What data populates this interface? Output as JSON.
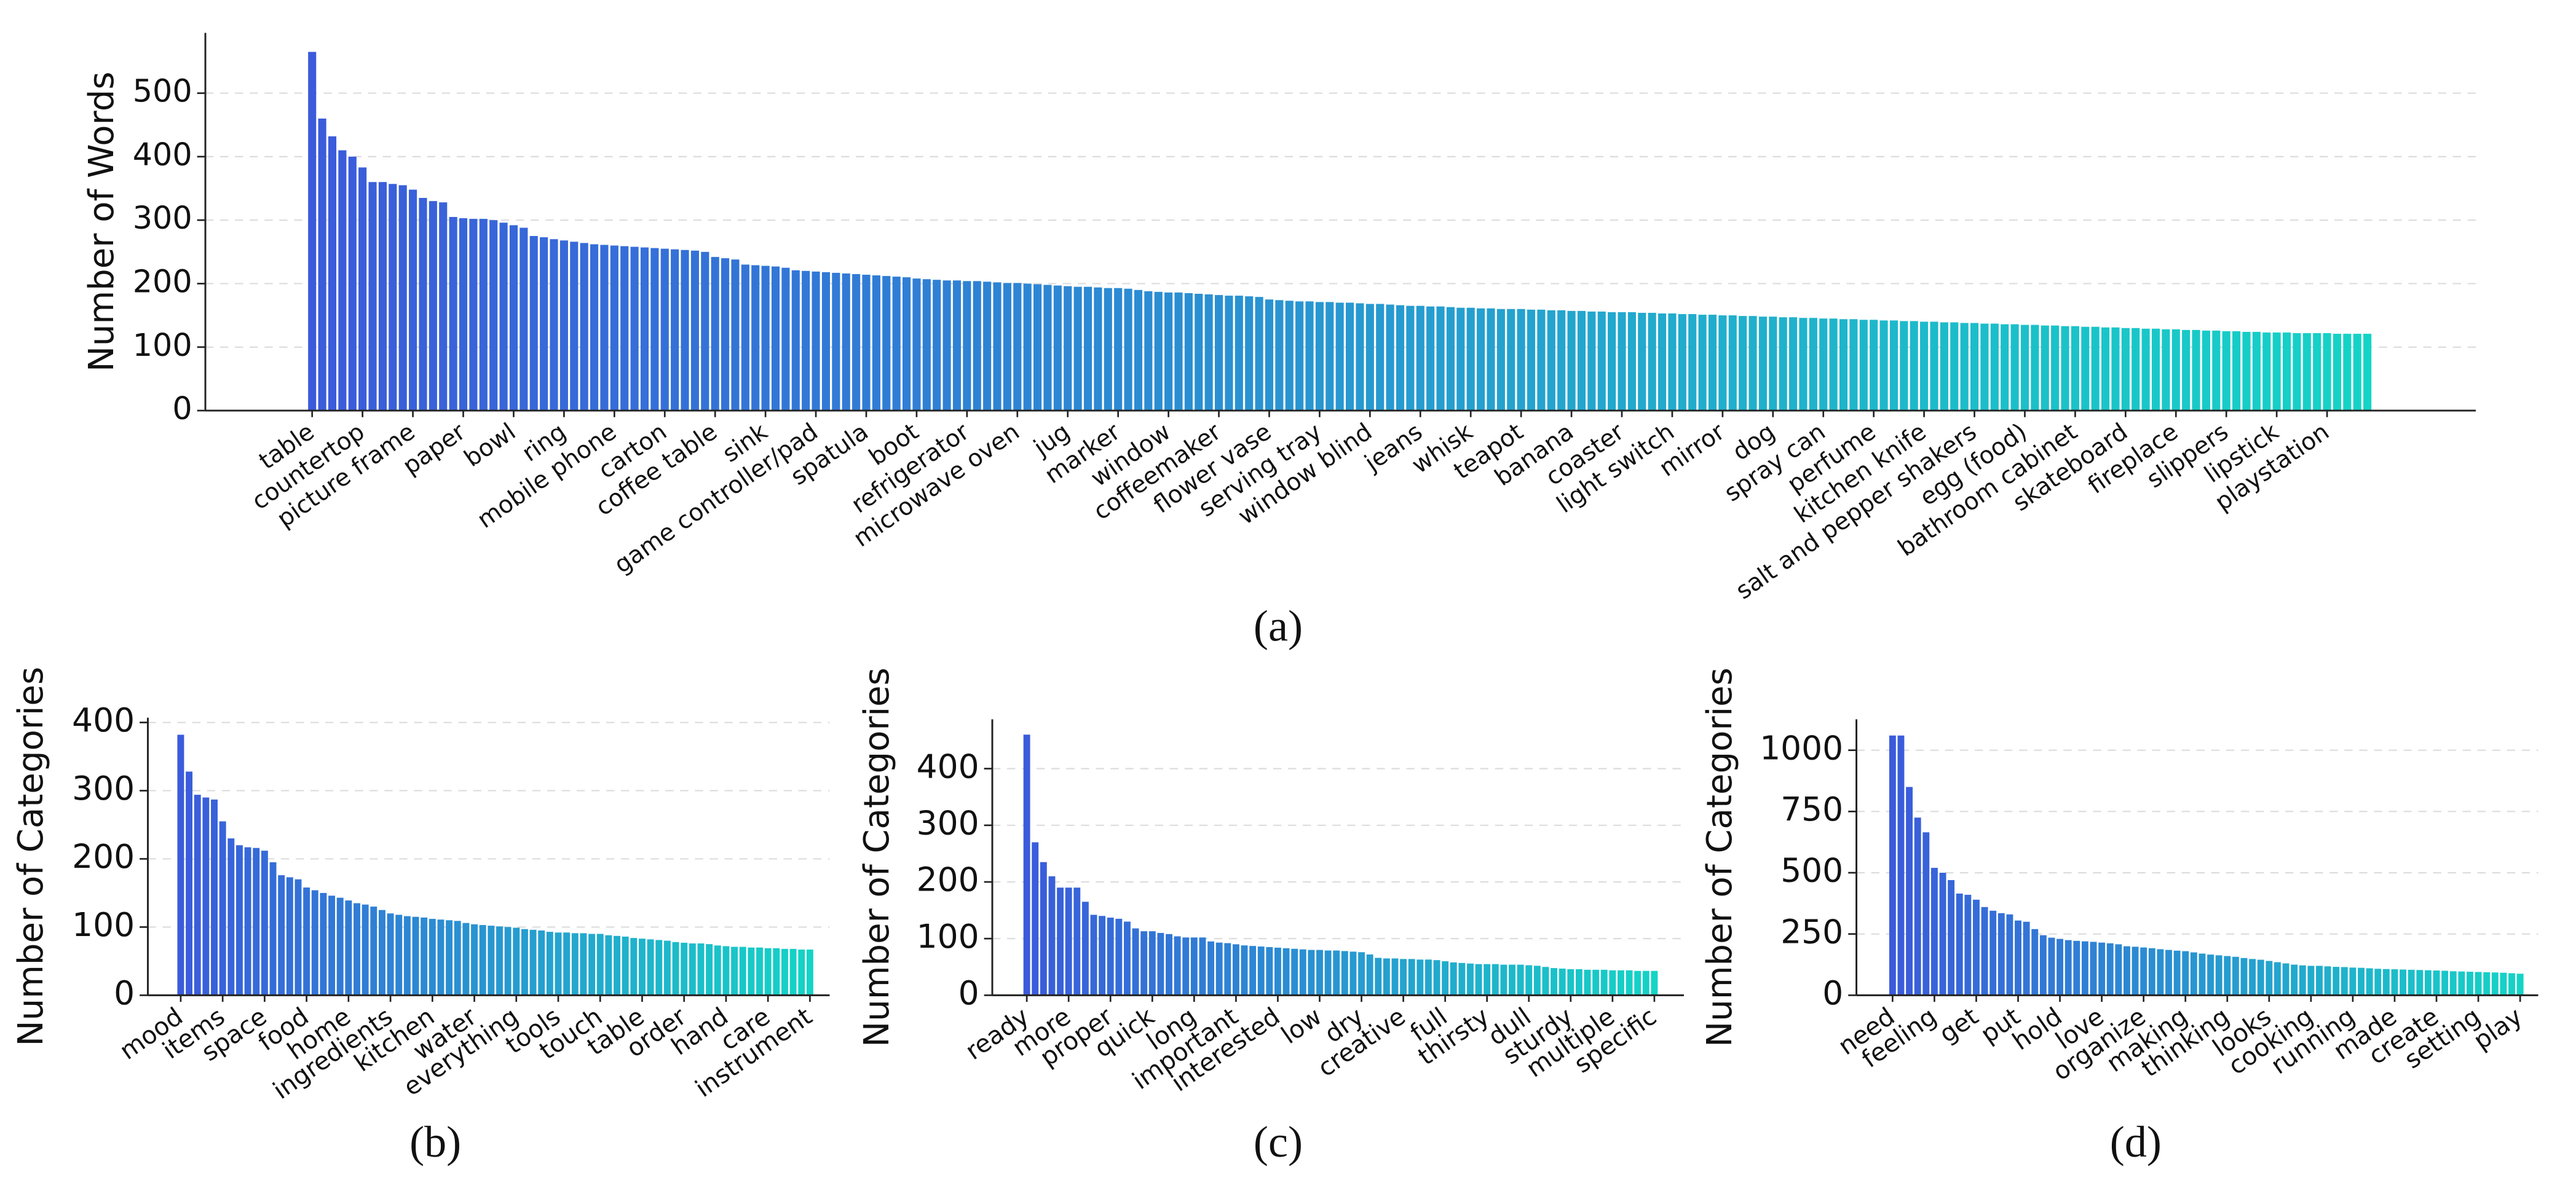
{
  "chart_data": [
    {
      "type": "bar",
      "title": "(a)",
      "y_label": "Number of Words",
      "categories": [
        "table",
        null,
        null,
        null,
        null,
        "countertop",
        null,
        null,
        null,
        null,
        "picture frame",
        null,
        null,
        null,
        null,
        "paper",
        null,
        null,
        null,
        null,
        "bowl",
        null,
        null,
        null,
        null,
        "ring",
        null,
        null,
        null,
        null,
        "mobile phone",
        null,
        null,
        null,
        null,
        "carton",
        null,
        null,
        null,
        null,
        "coffee table",
        null,
        null,
        null,
        null,
        "sink",
        null,
        null,
        null,
        null,
        "game controller/pad",
        null,
        null,
        null,
        null,
        "spatula",
        null,
        null,
        null,
        null,
        "boot",
        null,
        null,
        null,
        null,
        "refrigerator",
        null,
        null,
        null,
        null,
        "microwave oven",
        null,
        null,
        null,
        null,
        "jug",
        null,
        null,
        null,
        null,
        "marker",
        null,
        null,
        null,
        null,
        "window",
        null,
        null,
        null,
        null,
        "coffeemaker",
        null,
        null,
        null,
        null,
        "flower vase",
        null,
        null,
        null,
        null,
        "serving tray",
        null,
        null,
        null,
        null,
        "window blind",
        null,
        null,
        null,
        null,
        "jeans",
        null,
        null,
        null,
        null,
        "whisk",
        null,
        null,
        null,
        null,
        "teapot",
        null,
        null,
        null,
        null,
        "banana",
        null,
        null,
        null,
        null,
        "coaster",
        null,
        null,
        null,
        null,
        "light switch",
        null,
        null,
        null,
        null,
        "mirror",
        null,
        null,
        null,
        null,
        "dog",
        null,
        null,
        null,
        null,
        "spray can",
        null,
        null,
        null,
        null,
        "perfume",
        null,
        null,
        null,
        null,
        "kitchen knife",
        null,
        null,
        null,
        null,
        "salt and pepper shakers",
        null,
        null,
        null,
        null,
        "egg (food)",
        null,
        null,
        null,
        null,
        "bathroom cabinet",
        null,
        null,
        null,
        null,
        "skateboard",
        null,
        null,
        null,
        null,
        "fireplace",
        null,
        null,
        null,
        null,
        "slippers",
        null,
        null,
        null,
        null,
        "lipstick",
        null,
        null,
        null,
        null,
        "playstation",
        null,
        null,
        null,
        null
      ],
      "values": [
        565,
        460,
        432,
        410,
        400,
        383,
        360,
        360,
        357,
        355,
        348,
        335,
        330,
        328,
        305,
        303,
        302,
        302,
        300,
        296,
        292,
        288,
        275,
        273,
        270,
        268,
        266,
        264,
        262,
        261,
        260,
        259,
        258,
        257,
        256,
        255,
        254,
        253,
        252,
        250,
        242,
        240,
        238,
        230,
        229,
        228,
        227,
        225,
        221,
        220,
        219,
        218,
        217,
        216,
        215,
        214,
        213,
        212,
        211,
        210,
        208,
        207,
        206,
        205,
        205,
        204,
        204,
        203,
        202,
        201,
        201,
        200,
        199,
        198,
        197,
        196,
        195,
        195,
        194,
        193,
        193,
        192,
        190,
        188,
        187,
        186,
        186,
        185,
        184,
        183,
        182,
        181,
        181,
        180,
        179,
        175,
        174,
        173,
        172,
        172,
        171,
        171,
        170,
        170,
        169,
        168,
        168,
        167,
        166,
        165,
        165,
        164,
        164,
        163,
        162,
        162,
        161,
        161,
        160,
        160,
        160,
        159,
        159,
        158,
        158,
        157,
        157,
        156,
        156,
        155,
        155,
        155,
        154,
        154,
        153,
        153,
        152,
        152,
        151,
        151,
        150,
        150,
        149,
        149,
        148,
        148,
        147,
        147,
        146,
        146,
        145,
        145,
        144,
        144,
        143,
        143,
        142,
        142,
        141,
        141,
        140,
        140,
        139,
        139,
        138,
        138,
        137,
        137,
        136,
        136,
        135,
        135,
        134,
        134,
        133,
        133,
        132,
        132,
        131,
        131,
        130,
        130,
        129,
        129,
        128,
        128,
        127,
        127,
        126,
        126,
        125,
        125,
        124,
        124,
        123,
        123,
        123,
        122,
        122,
        122,
        122,
        121,
        121,
        121,
        121
      ],
      "ylim": [
        0,
        595
      ],
      "yticks": [
        0,
        100,
        200,
        300,
        400,
        500
      ],
      "grid": true,
      "colors": [
        "#3b5bdb",
        "#14d4c6"
      ]
    },
    {
      "type": "bar",
      "title": "(b)",
      "y_label": "Number of Categories",
      "categories": [
        "mood",
        null,
        null,
        null,
        null,
        "items",
        null,
        null,
        null,
        null,
        "space",
        null,
        null,
        null,
        null,
        "food",
        null,
        null,
        null,
        null,
        "home",
        null,
        null,
        null,
        null,
        "ingredients",
        null,
        null,
        null,
        null,
        "kitchen",
        null,
        null,
        null,
        null,
        "water",
        null,
        null,
        null,
        null,
        "everything",
        null,
        null,
        null,
        null,
        "tools",
        null,
        null,
        null,
        null,
        "touch",
        null,
        null,
        null,
        null,
        "table",
        null,
        null,
        null,
        null,
        "order",
        null,
        null,
        null,
        null,
        "hand",
        null,
        null,
        null,
        null,
        "care",
        null,
        null,
        null,
        null,
        "instrument"
      ],
      "values": [
        382,
        328,
        294,
        290,
        287,
        255,
        230,
        220,
        217,
        216,
        212,
        195,
        176,
        173,
        170,
        158,
        154,
        150,
        146,
        143,
        139,
        135,
        133,
        130,
        125,
        120,
        118,
        116,
        115,
        114,
        112,
        111,
        110,
        109,
        106,
        104,
        103,
        102,
        101,
        100,
        99,
        97,
        96,
        95,
        93,
        92,
        92,
        91,
        91,
        90,
        90,
        88,
        87,
        86,
        84,
        83,
        82,
        81,
        80,
        78,
        77,
        76,
        76,
        75,
        73,
        72,
        71,
        71,
        70,
        70,
        69,
        69,
        68,
        68,
        67,
        67
      ],
      "ylim": [
        0,
        407
      ],
      "yticks": [
        0,
        100,
        200,
        300,
        400
      ],
      "grid": true,
      "colors": [
        "#3b5bdb",
        "#14d4c6"
      ]
    },
    {
      "type": "bar",
      "title": "(c)",
      "y_label": "Number of Categories",
      "categories": [
        "ready",
        null,
        null,
        null,
        null,
        "more",
        null,
        null,
        null,
        null,
        "proper",
        null,
        null,
        null,
        null,
        "quick",
        null,
        null,
        null,
        null,
        "long",
        null,
        null,
        null,
        null,
        "important",
        null,
        null,
        null,
        null,
        "interested",
        null,
        null,
        null,
        null,
        "low",
        null,
        null,
        null,
        null,
        "dry",
        null,
        null,
        null,
        null,
        "creative",
        null,
        null,
        null,
        null,
        "full",
        null,
        null,
        null,
        null,
        "thirsty",
        null,
        null,
        null,
        null,
        "dull",
        null,
        null,
        null,
        null,
        "sturdy",
        null,
        null,
        null,
        null,
        "multiple",
        null,
        null,
        null,
        null,
        "specific"
      ],
      "values": [
        460,
        270,
        235,
        210,
        190,
        190,
        190,
        165,
        142,
        140,
        137,
        135,
        130,
        118,
        113,
        113,
        110,
        108,
        104,
        102,
        102,
        102,
        95,
        93,
        92,
        90,
        88,
        87,
        86,
        85,
        84,
        83,
        82,
        81,
        80,
        80,
        79,
        79,
        78,
        77,
        76,
        72,
        66,
        65,
        65,
        64,
        64,
        63,
        63,
        62,
        60,
        58,
        57,
        56,
        55,
        55,
        55,
        54,
        54,
        54,
        53,
        52,
        50,
        48,
        47,
        46,
        46,
        45,
        45,
        45,
        44,
        44,
        44,
        43,
        43,
        43
      ],
      "ylim": [
        0,
        487
      ],
      "yticks": [
        0,
        100,
        200,
        300,
        400
      ],
      "grid": true,
      "colors": [
        "#3b5bdb",
        "#14d4c6"
      ]
    },
    {
      "type": "bar",
      "title": "(d)",
      "y_label": "Number of Categories",
      "categories": [
        "need",
        null,
        null,
        null,
        null,
        "feeling",
        null,
        null,
        null,
        null,
        "get",
        null,
        null,
        null,
        null,
        "put",
        null,
        null,
        null,
        null,
        "hold",
        null,
        null,
        null,
        null,
        "love",
        null,
        null,
        null,
        null,
        "organize",
        null,
        null,
        null,
        null,
        "making",
        null,
        null,
        null,
        null,
        "thinking",
        null,
        null,
        null,
        null,
        "looks",
        null,
        null,
        null,
        null,
        "cooking",
        null,
        null,
        null,
        null,
        "running",
        null,
        null,
        null,
        null,
        "made",
        null,
        null,
        null,
        null,
        "create",
        null,
        null,
        null,
        null,
        "setting",
        null,
        null,
        null,
        null,
        "play"
      ],
      "values": [
        1060,
        1060,
        850,
        725,
        665,
        520,
        500,
        470,
        415,
        410,
        390,
        360,
        345,
        335,
        330,
        305,
        300,
        270,
        245,
        235,
        230,
        225,
        222,
        220,
        218,
        215,
        212,
        208,
        200,
        198,
        195,
        192,
        188,
        185,
        182,
        180,
        175,
        170,
        166,
        163,
        160,
        157,
        152,
        148,
        145,
        140,
        135,
        130,
        125,
        122,
        120,
        120,
        118,
        116,
        115,
        113,
        112,
        110,
        108,
        107,
        106,
        105,
        104,
        103,
        102,
        101,
        100,
        98,
        97,
        96,
        95,
        94,
        93,
        92,
        90,
        88
      ],
      "ylim": [
        0,
        1126
      ],
      "yticks": [
        0,
        250,
        500,
        750,
        1000
      ],
      "grid": true,
      "colors": [
        "#3b5bdb",
        "#14d4c6"
      ]
    }
  ]
}
